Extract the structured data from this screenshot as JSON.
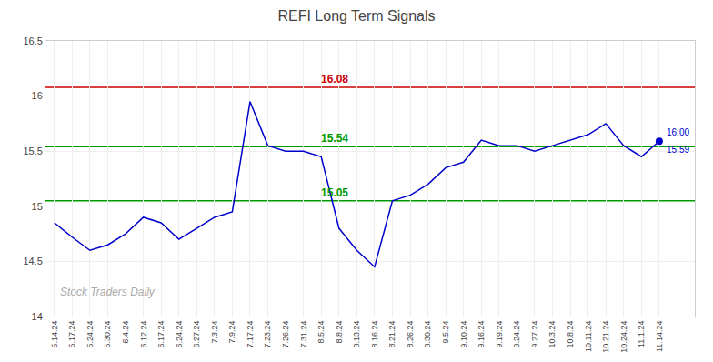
{
  "chart_data": {
    "type": "line",
    "title": "REFI Long Term Signals",
    "categories": [
      "5.14.24",
      "5.17.24",
      "5.24.24",
      "5.30.24",
      "6.4.24",
      "6.12.24",
      "6.17.24",
      "6.24.24",
      "6.27.24",
      "7.3.24",
      "7.9.24",
      "7.17.24",
      "7.23.24",
      "7.26.24",
      "7.31.24",
      "8.5.24",
      "8.8.24",
      "8.13.24",
      "8.16.24",
      "8.21.24",
      "8.26.24",
      "8.30.24",
      "9.5.24",
      "9.10.24",
      "9.16.24",
      "9.19.24",
      "9.24.24",
      "9.27.24",
      "10.3.24",
      "10.8.24",
      "10.11.24",
      "10.21.24",
      "10.24.24",
      "11.1.24",
      "11.14.24"
    ],
    "values": [
      14.85,
      14.72,
      14.6,
      14.65,
      14.75,
      14.9,
      14.85,
      14.7,
      14.8,
      14.9,
      14.95,
      15.95,
      15.55,
      15.5,
      15.5,
      15.45,
      14.8,
      14.6,
      14.45,
      15.05,
      15.1,
      15.2,
      15.35,
      15.4,
      15.6,
      15.55,
      15.55,
      15.5,
      15.55,
      15.6,
      15.65,
      15.75,
      15.55,
      15.45,
      15.59
    ],
    "color": "#0000cc",
    "ylim": [
      14,
      16.5
    ],
    "yticks": [
      14,
      14.5,
      15,
      15.5,
      16,
      16.5
    ],
    "grid": true,
    "hlines": [
      {
        "value": 16.08,
        "label": "16.08",
        "color": "#cc0000"
      },
      {
        "value": 15.54,
        "label": "15.54",
        "color": "#009900"
      },
      {
        "value": 15.05,
        "label": "15.05",
        "color": "#009900"
      }
    ],
    "last_point": {
      "value": 15.59,
      "labels": [
        "16:00",
        "15.59"
      ],
      "color": "#0000cc"
    },
    "watermark": "Stock Traders Daily"
  }
}
